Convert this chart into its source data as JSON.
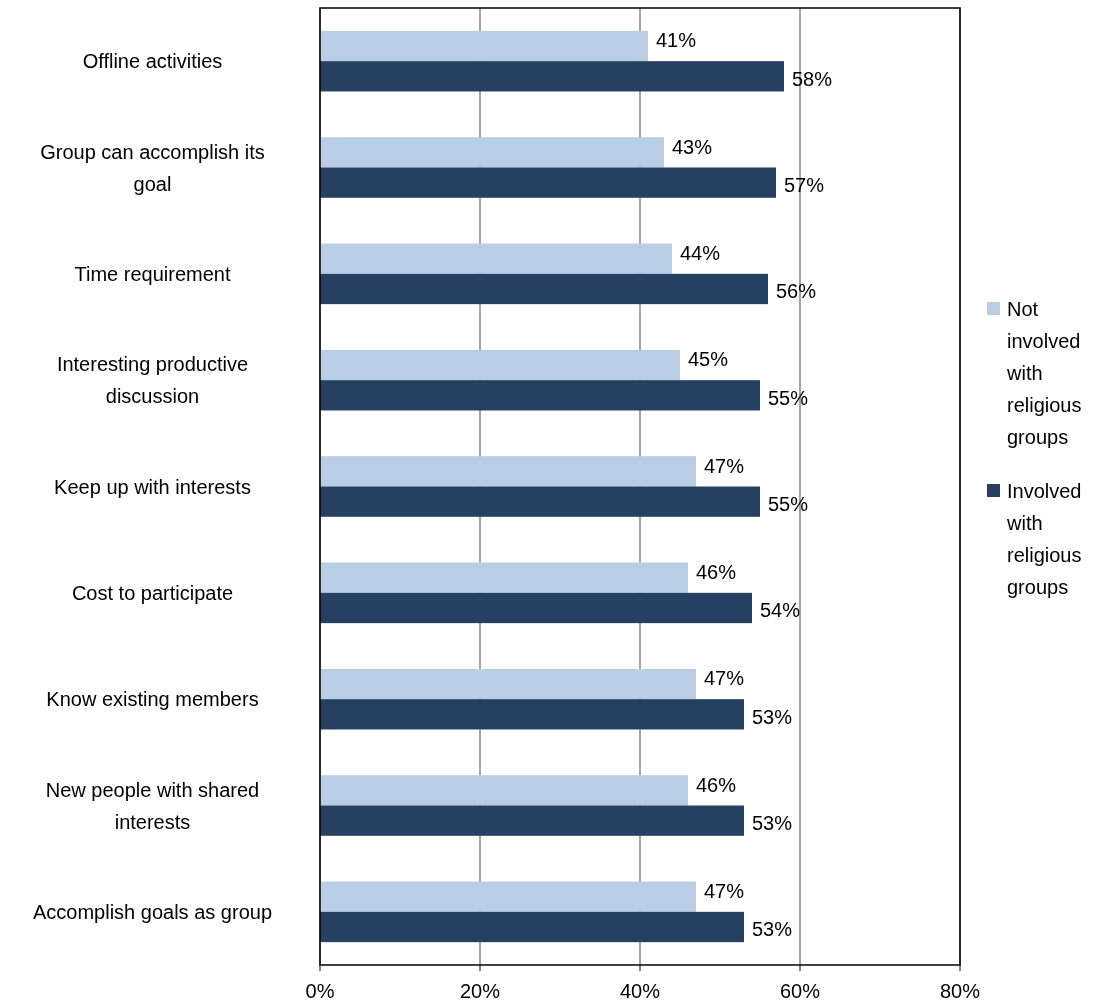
{
  "chart_data": {
    "type": "bar",
    "orientation": "horizontal",
    "categories": [
      "Offline activities",
      "Group can accomplish its goal",
      "Time requirement",
      "Interesting productive discussion",
      "Keep up with interests",
      "Cost to participate",
      "Know existing members",
      "New people with shared interests",
      "Accomplish goals as group"
    ],
    "series": [
      {
        "name": "Not involved with religious groups",
        "color": "#b9cde5",
        "values": [
          41,
          43,
          44,
          45,
          47,
          46,
          47,
          46,
          47
        ],
        "value_labels": [
          "41%",
          "43%",
          "44%",
          "45%",
          "47%",
          "46%",
          "47%",
          "46%",
          "47%"
        ]
      },
      {
        "name": "Involved with religious groups",
        "color": "#254061",
        "values": [
          58,
          57,
          56,
          55,
          55,
          54,
          53,
          53,
          53
        ],
        "value_labels": [
          "58%",
          "57%",
          "56%",
          "55%",
          "55%",
          "54%",
          "53%",
          "53%",
          "53%"
        ]
      }
    ],
    "xlim": [
      0,
      80
    ],
    "xticks": [
      {
        "value": 0,
        "label": "0%"
      },
      {
        "value": 20,
        "label": "20%"
      },
      {
        "value": 40,
        "label": "40%"
      },
      {
        "value": 60,
        "label": "60%"
      },
      {
        "value": 80,
        "label": "80%"
      }
    ],
    "grid": "x",
    "legend": "right"
  }
}
